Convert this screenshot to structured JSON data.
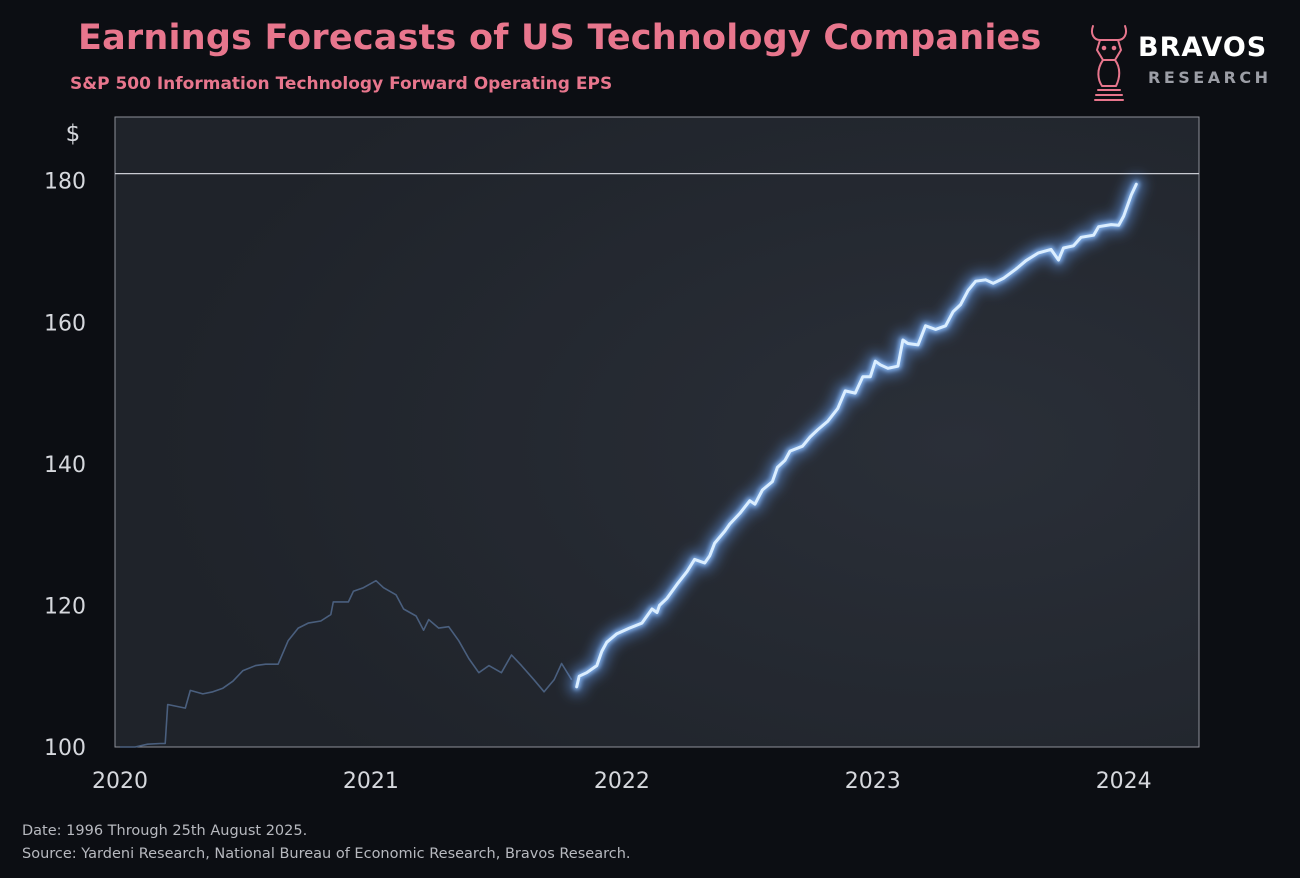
{
  "header": {
    "title": "Earnings Forecasts of US Technology Companies",
    "subtitle": "S&P 500 Information Technology Forward Operating EPS"
  },
  "logo": {
    "name": "BRAVOS",
    "sub": "RESEARCH",
    "icon": "bull-chess-knight-icon"
  },
  "footer": {
    "date_note": "Date: 1996 Through 25th August 2025.",
    "source_note": "Source: Yardeni Research, National Bureau of Economic Research, Bravos Research."
  },
  "colors": {
    "background": "#0c0e13",
    "plot_background": "#22262e",
    "accent": "#e8768d",
    "highlight_line": "#dbeeff",
    "glow": "#6aa6ff",
    "dim_line": "#4a5f7e",
    "axis_text": "#d6d8dd"
  },
  "chart_data": {
    "type": "line",
    "title": "Earnings Forecasts of US Technology Companies",
    "subtitle": "S&P 500 Information Technology Forward Operating EPS",
    "ylabel": "$",
    "xlabel": "",
    "xlim": [
      2019.98,
      2024.3
    ],
    "ylim": [
      100,
      189
    ],
    "reference_line": 181,
    "x_ticks": [
      2020,
      2021,
      2022,
      2023,
      2024
    ],
    "x_tick_labels": [
      "2020",
      "2021",
      "2022",
      "2023",
      "2024"
    ],
    "y_ticks": [
      100,
      120,
      140,
      160,
      180
    ],
    "y_tick_labels": [
      "100",
      "120",
      "140",
      "160",
      "180"
    ],
    "grid": false,
    "legend": "none",
    "series": [
      {
        "style": "dim",
        "points": [
          [
            2020.0,
            100.0
          ],
          [
            2020.06,
            100.0
          ],
          [
            2020.11,
            100.4
          ],
          [
            2020.16,
            100.5
          ],
          [
            2020.18,
            100.5
          ],
          [
            2020.19,
            106.0
          ],
          [
            2020.26,
            105.5
          ],
          [
            2020.28,
            108.0
          ],
          [
            2020.33,
            107.5
          ],
          [
            2020.37,
            107.8
          ],
          [
            2020.41,
            108.3
          ],
          [
            2020.45,
            109.3
          ],
          [
            2020.49,
            110.8
          ],
          [
            2020.54,
            111.5
          ],
          [
            2020.58,
            111.7
          ],
          [
            2020.63,
            111.7
          ],
          [
            2020.67,
            115.0
          ],
          [
            2020.71,
            116.8
          ],
          [
            2020.75,
            117.5
          ],
          [
            2020.8,
            117.8
          ],
          [
            2020.84,
            118.7
          ],
          [
            2020.85,
            120.5
          ],
          [
            2020.91,
            120.5
          ],
          [
            2020.93,
            122.0
          ],
          [
            2020.97,
            122.5
          ],
          [
            2021.02,
            123.5
          ],
          [
            2021.05,
            122.5
          ],
          [
            2021.1,
            121.5
          ],
          [
            2021.13,
            119.5
          ],
          [
            2021.18,
            118.5
          ],
          [
            2021.21,
            116.5
          ],
          [
            2021.23,
            118.0
          ],
          [
            2021.27,
            116.8
          ],
          [
            2021.31,
            117.0
          ],
          [
            2021.35,
            115.0
          ],
          [
            2021.39,
            112.5
          ],
          [
            2021.43,
            110.5
          ],
          [
            2021.47,
            111.5
          ],
          [
            2021.52,
            110.5
          ],
          [
            2021.56,
            113.0
          ],
          [
            2021.6,
            111.5
          ],
          [
            2021.65,
            109.5
          ],
          [
            2021.69,
            107.8
          ],
          [
            2021.73,
            109.5
          ],
          [
            2021.76,
            111.8
          ],
          [
            2021.8,
            109.5
          ]
        ]
      },
      {
        "style": "highlight",
        "points": [
          [
            2021.82,
            108.5
          ],
          [
            2021.83,
            110.0
          ],
          [
            2021.86,
            110.5
          ],
          [
            2021.9,
            111.5
          ],
          [
            2021.92,
            113.5
          ],
          [
            2021.94,
            114.8
          ],
          [
            2021.98,
            116.0
          ],
          [
            2022.03,
            116.8
          ],
          [
            2022.08,
            117.5
          ],
          [
            2022.12,
            119.5
          ],
          [
            2022.14,
            119.0
          ],
          [
            2022.15,
            120.0
          ],
          [
            2022.18,
            121.0
          ],
          [
            2022.22,
            123.0
          ],
          [
            2022.26,
            124.8
          ],
          [
            2022.29,
            126.5
          ],
          [
            2022.33,
            126.0
          ],
          [
            2022.35,
            127.0
          ],
          [
            2022.37,
            128.8
          ],
          [
            2022.41,
            130.5
          ],
          [
            2022.43,
            131.5
          ],
          [
            2022.47,
            133.0
          ],
          [
            2022.51,
            134.8
          ],
          [
            2022.53,
            134.3
          ],
          [
            2022.56,
            136.3
          ],
          [
            2022.6,
            137.5
          ],
          [
            2022.62,
            139.5
          ],
          [
            2022.65,
            140.5
          ],
          [
            2022.67,
            141.8
          ],
          [
            2022.72,
            142.5
          ],
          [
            2022.75,
            143.8
          ],
          [
            2022.78,
            144.8
          ],
          [
            2022.82,
            146.0
          ],
          [
            2022.86,
            147.8
          ],
          [
            2022.89,
            150.3
          ],
          [
            2022.93,
            150.0
          ],
          [
            2022.96,
            152.3
          ],
          [
            2022.99,
            152.3
          ],
          [
            2023.01,
            154.5
          ],
          [
            2023.03,
            154.0
          ],
          [
            2023.06,
            153.5
          ],
          [
            2023.1,
            153.8
          ],
          [
            2023.12,
            157.5
          ],
          [
            2023.14,
            157.0
          ],
          [
            2023.18,
            156.8
          ],
          [
            2023.21,
            159.5
          ],
          [
            2023.25,
            159.0
          ],
          [
            2023.29,
            159.5
          ],
          [
            2023.32,
            161.5
          ],
          [
            2023.35,
            162.5
          ],
          [
            2023.38,
            164.5
          ],
          [
            2023.41,
            165.8
          ],
          [
            2023.45,
            166.0
          ],
          [
            2023.48,
            165.5
          ],
          [
            2023.52,
            166.2
          ],
          [
            2023.57,
            167.5
          ],
          [
            2023.61,
            168.7
          ],
          [
            2023.66,
            169.8
          ],
          [
            2023.71,
            170.3
          ],
          [
            2023.74,
            168.8
          ],
          [
            2023.76,
            170.5
          ],
          [
            2023.8,
            170.8
          ],
          [
            2023.83,
            172.0
          ],
          [
            2023.88,
            172.3
          ],
          [
            2023.9,
            173.5
          ],
          [
            2023.95,
            173.8
          ],
          [
            2023.98,
            173.7
          ],
          [
            2024.0,
            175.0
          ],
          [
            2024.03,
            178.0
          ],
          [
            2024.05,
            179.5
          ]
        ]
      }
    ]
  }
}
